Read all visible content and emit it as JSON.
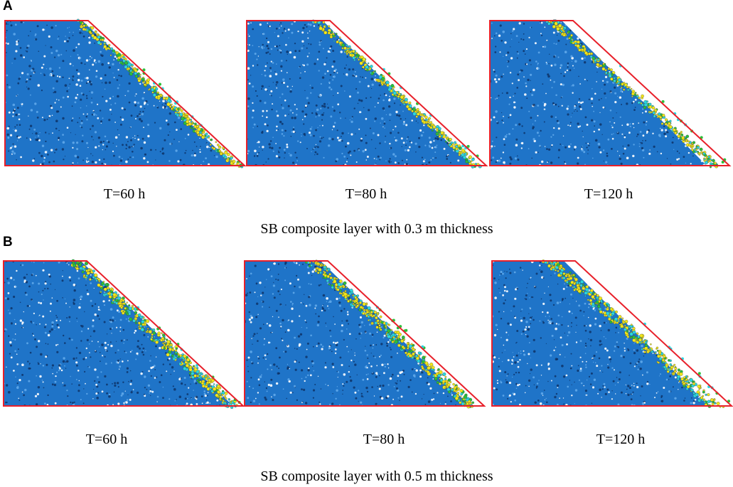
{
  "panels": [
    {
      "letter": "A",
      "caption": "SB composite layer with 0.3 m thickness",
      "subfigures": [
        {
          "time_label": "T=60 h",
          "stage": 0
        },
        {
          "time_label": "T=80 h",
          "stage": 1
        },
        {
          "time_label": "T=120 h",
          "stage": 2
        }
      ]
    },
    {
      "letter": "B",
      "caption": "SB composite layer with 0.5 m thickness",
      "subfigures": [
        {
          "time_label": "T=60 h",
          "stage": 0
        },
        {
          "time_label": "T=80 h",
          "stage": 1
        },
        {
          "time_label": "T=120 h",
          "stage": 2
        }
      ]
    }
  ],
  "colors": {
    "outline": "#e8202a",
    "fill_particles": "#1f74c8",
    "fill_dark": "#0d2f63",
    "layer_yellow": "#f2e61a",
    "layer_cyan": "#2ad6e0",
    "layer_green": "#2bbf3a"
  }
}
